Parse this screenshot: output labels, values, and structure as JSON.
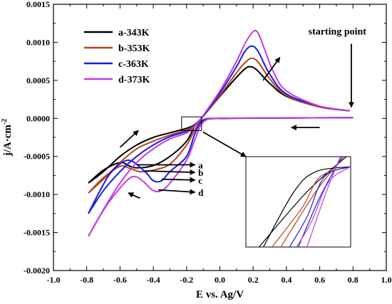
{
  "chart_data": {
    "type": "line",
    "xlabel": "E vs. Ag/V",
    "ylabel": "j/A·cm",
    "ylabel_sup": "-2",
    "xlim": [
      -1.0,
      1.0
    ],
    "ylim": [
      -0.002,
      0.0015
    ],
    "xticks": [
      "-1.0",
      "-0.8",
      "-0.6",
      "-0.4",
      "-0.2",
      "0.0",
      "0.2",
      "0.4",
      "0.6",
      "0.8",
      "1.0"
    ],
    "yticks": [
      "0.0015",
      "0.0010",
      "0.0005",
      "0.0000",
      "-0.0005",
      "-0.0010",
      "-0.0015",
      "-0.0020"
    ],
    "grid": false,
    "legend_position": "top-left",
    "series": [
      {
        "name": "a-343K",
        "color": "#000000",
        "forward": [
          [
            0.8,
            1e-05
          ],
          [
            0.4,
            5e-06
          ],
          [
            0.0,
            0.0
          ],
          [
            -0.1,
            -2e-05
          ],
          [
            -0.15,
            -0.0001
          ],
          [
            -0.2,
            -0.0003
          ],
          [
            -0.3,
            -0.0005
          ],
          [
            -0.4,
            -0.00062
          ],
          [
            -0.5,
            -0.00065
          ],
          [
            -0.55,
            -0.00062
          ],
          [
            -0.6,
            -0.00058
          ],
          [
            -0.7,
            -0.00068
          ],
          [
            -0.79,
            -0.00085
          ]
        ],
        "reverse": [
          [
            -0.79,
            -0.00085
          ],
          [
            -0.7,
            -0.0007
          ],
          [
            -0.6,
            -0.0005
          ],
          [
            -0.5,
            -0.00035
          ],
          [
            -0.4,
            -0.00025
          ],
          [
            -0.3,
            -0.00019
          ],
          [
            -0.2,
            -0.00013
          ],
          [
            -0.15,
            -8e-05
          ],
          [
            -0.1,
            3e-05
          ],
          [
            0.0,
            0.00029
          ],
          [
            0.1,
            0.00054
          ],
          [
            0.15,
            0.00065
          ],
          [
            0.18,
            0.00068
          ],
          [
            0.22,
            0.00064
          ],
          [
            0.3,
            0.00046
          ],
          [
            0.4,
            0.00029
          ],
          [
            0.6,
            0.00015
          ],
          [
            0.78,
            0.0001
          ]
        ]
      },
      {
        "name": "b-353K",
        "color": "#b5451b",
        "forward": [
          [
            0.8,
            1e-05
          ],
          [
            0.4,
            5e-06
          ],
          [
            0.0,
            0.0
          ],
          [
            -0.1,
            -2e-05
          ],
          [
            -0.15,
            -0.00015
          ],
          [
            -0.2,
            -0.00035
          ],
          [
            -0.3,
            -0.0006
          ],
          [
            -0.4,
            -0.00068
          ],
          [
            -0.48,
            -0.0007
          ],
          [
            -0.55,
            -0.00065
          ],
          [
            -0.6,
            -0.00063
          ],
          [
            -0.7,
            -0.00078
          ],
          [
            -0.79,
            -0.00098
          ]
        ],
        "reverse": [
          [
            -0.79,
            -0.00098
          ],
          [
            -0.7,
            -0.0008
          ],
          [
            -0.6,
            -0.00058
          ],
          [
            -0.5,
            -0.0004
          ],
          [
            -0.4,
            -0.0003
          ],
          [
            -0.3,
            -0.00022
          ],
          [
            -0.2,
            -0.00015
          ],
          [
            -0.15,
            -9e-05
          ],
          [
            -0.1,
            3e-05
          ],
          [
            0.0,
            0.0003
          ],
          [
            0.1,
            0.0006
          ],
          [
            0.15,
            0.00073
          ],
          [
            0.19,
            0.00079
          ],
          [
            0.23,
            0.00074
          ],
          [
            0.3,
            0.00052
          ],
          [
            0.4,
            0.0003
          ],
          [
            0.6,
            0.00015
          ],
          [
            0.78,
            0.0001
          ]
        ]
      },
      {
        "name": "c-363K",
        "color": "#1a1ae6",
        "forward": [
          [
            0.8,
            1e-05
          ],
          [
            0.4,
            5e-06
          ],
          [
            0.0,
            0.0
          ],
          [
            -0.1,
            -3e-05
          ],
          [
            -0.15,
            -0.0002
          ],
          [
            -0.2,
            -0.0005
          ],
          [
            -0.3,
            -0.0007
          ],
          [
            -0.35,
            -0.00082
          ],
          [
            -0.4,
            -0.00082
          ],
          [
            -0.45,
            -0.0007
          ],
          [
            -0.55,
            -0.00055
          ],
          [
            -0.65,
            -0.0007
          ],
          [
            -0.72,
            -0.00095
          ],
          [
            -0.79,
            -0.00125
          ]
        ],
        "reverse": [
          [
            -0.79,
            -0.00125
          ],
          [
            -0.7,
            -0.00095
          ],
          [
            -0.6,
            -0.0007
          ],
          [
            -0.5,
            -0.0005
          ],
          [
            -0.4,
            -0.00035
          ],
          [
            -0.3,
            -0.00024
          ],
          [
            -0.2,
            -0.00017
          ],
          [
            -0.15,
            -0.0001
          ],
          [
            -0.1,
            3e-05
          ],
          [
            0.0,
            0.00033
          ],
          [
            0.1,
            0.00068
          ],
          [
            0.15,
            0.00088
          ],
          [
            0.19,
            0.00095
          ],
          [
            0.23,
            0.00088
          ],
          [
            0.3,
            0.00058
          ],
          [
            0.4,
            0.00032
          ],
          [
            0.6,
            0.00016
          ],
          [
            0.78,
            0.0001
          ]
        ]
      },
      {
        "name": "d-373K",
        "color": "#c03ce6",
        "forward": [
          [
            0.8,
            1e-05
          ],
          [
            0.4,
            5e-06
          ],
          [
            0.0,
            0.0
          ],
          [
            -0.1,
            -5e-05
          ],
          [
            -0.15,
            -0.00028
          ],
          [
            -0.2,
            -0.00055
          ],
          [
            -0.3,
            -0.00085
          ],
          [
            -0.35,
            -0.00095
          ],
          [
            -0.4,
            -0.00095
          ],
          [
            -0.45,
            -0.00085
          ],
          [
            -0.5,
            -0.00077
          ],
          [
            -0.55,
            -0.0008
          ],
          [
            -0.65,
            -0.00105
          ],
          [
            -0.72,
            -0.00128
          ],
          [
            -0.79,
            -0.00155
          ]
        ],
        "reverse": [
          [
            -0.79,
            -0.00155
          ],
          [
            -0.7,
            -0.0012
          ],
          [
            -0.6,
            -0.00085
          ],
          [
            -0.5,
            -0.00058
          ],
          [
            -0.4,
            -0.0004
          ],
          [
            -0.3,
            -0.00027
          ],
          [
            -0.2,
            -0.00019
          ],
          [
            -0.15,
            -0.0001
          ],
          [
            -0.1,
            4e-05
          ],
          [
            0.0,
            0.00036
          ],
          [
            0.1,
            0.00075
          ],
          [
            0.15,
            0.00098
          ],
          [
            0.2,
            0.00114
          ],
          [
            0.23,
            0.00112
          ],
          [
            0.27,
            0.0009
          ],
          [
            0.32,
            0.00062
          ],
          [
            0.4,
            0.00036
          ],
          [
            0.6,
            0.00016
          ],
          [
            0.78,
            0.0001
          ]
        ]
      }
    ],
    "annotations": {
      "starting_point": "starting point",
      "peak_labels": [
        "a",
        "b",
        "c",
        "d"
      ]
    }
  }
}
